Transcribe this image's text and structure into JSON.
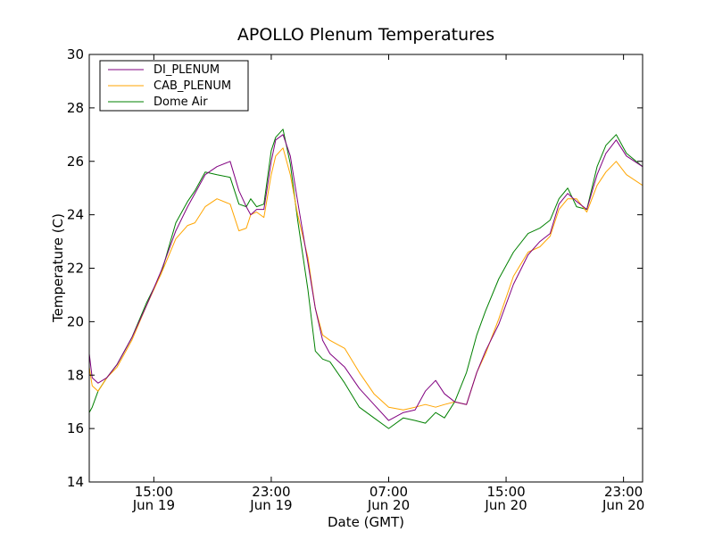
{
  "chart_data": {
    "type": "line",
    "title": "APOLLO Plenum Temperatures",
    "xlabel": "Date (GMT)",
    "ylabel": "Temperature (C)",
    "x_units": "hours since Jun 19 00:00 GMT",
    "xlim": [
      10.6,
      48.3
    ],
    "ylim": [
      14,
      30
    ],
    "yticks": [
      14,
      16,
      18,
      20,
      22,
      24,
      26,
      28,
      30
    ],
    "xticks": [
      {
        "x": 15,
        "line1": "15:00",
        "line2": "Jun 19"
      },
      {
        "x": 23,
        "line1": "23:00",
        "line2": "Jun 19"
      },
      {
        "x": 31,
        "line1": "07:00",
        "line2": "Jun 20"
      },
      {
        "x": 39,
        "line1": "15:00",
        "line2": "Jun 20"
      },
      {
        "x": 47,
        "line1": "23:00",
        "line2": "Jun 20"
      }
    ],
    "legend_position": "top-left",
    "series": [
      {
        "name": "DI_PLENUM",
        "color": "#800080",
        "x": [
          10.6,
          10.8,
          11.2,
          11.8,
          12.5,
          13.5,
          14.5,
          15.5,
          16.5,
          17.3,
          17.8,
          18.5,
          19.3,
          20.2,
          20.8,
          21.3,
          21.6,
          22.0,
          22.5,
          23.0,
          23.3,
          23.8,
          24.3,
          24.8,
          25.5,
          26.0,
          26.5,
          27.0,
          28.0,
          29.0,
          30.0,
          31.0,
          32.0,
          32.8,
          33.5,
          34.2,
          34.8,
          35.5,
          36.3,
          37.0,
          37.6,
          38.5,
          39.5,
          40.5,
          41.3,
          42.0,
          42.6,
          43.2,
          43.8,
          44.5,
          45.2,
          45.8,
          46.5,
          47.2,
          48.3
        ],
        "y": [
          18.8,
          17.9,
          17.7,
          17.9,
          18.4,
          19.4,
          20.6,
          21.9,
          23.4,
          24.3,
          24.8,
          25.5,
          25.8,
          26.0,
          24.9,
          24.3,
          24.0,
          24.2,
          24.2,
          26.0,
          26.8,
          27.0,
          26.2,
          24.5,
          22.2,
          20.5,
          19.3,
          18.8,
          18.3,
          17.5,
          16.9,
          16.3,
          16.6,
          16.7,
          17.4,
          17.8,
          17.3,
          17.0,
          16.9,
          18.1,
          18.9,
          19.9,
          21.4,
          22.5,
          23.0,
          23.3,
          24.4,
          24.8,
          24.5,
          24.2,
          25.5,
          26.3,
          26.8,
          26.2,
          25.8
        ]
      },
      {
        "name": "CAB_PLENUM",
        "color": "#ffa500",
        "x": [
          10.6,
          10.8,
          11.2,
          11.8,
          12.5,
          13.5,
          14.5,
          15.5,
          16.5,
          17.3,
          17.8,
          18.5,
          19.3,
          20.2,
          20.8,
          21.3,
          21.6,
          22.0,
          22.5,
          23.0,
          23.3,
          23.8,
          24.3,
          24.8,
          25.5,
          26.0,
          26.5,
          27.0,
          28.0,
          29.0,
          30.0,
          31.0,
          32.0,
          32.8,
          33.5,
          34.2,
          34.8,
          35.5,
          36.3,
          37.0,
          37.6,
          38.5,
          39.5,
          40.5,
          41.3,
          42.0,
          42.6,
          43.2,
          43.8,
          44.5,
          45.2,
          45.8,
          46.5,
          47.2,
          48.3
        ],
        "y": [
          18.3,
          17.6,
          17.4,
          17.9,
          18.3,
          19.3,
          20.6,
          21.8,
          23.1,
          23.6,
          23.7,
          24.3,
          24.6,
          24.4,
          23.4,
          23.5,
          24.0,
          24.1,
          23.9,
          25.5,
          26.2,
          26.5,
          25.5,
          24.0,
          22.4,
          20.5,
          19.5,
          19.3,
          19.0,
          18.1,
          17.3,
          16.8,
          16.7,
          16.8,
          16.9,
          16.8,
          16.9,
          17.0,
          16.9,
          18.1,
          18.8,
          20.1,
          21.7,
          22.6,
          22.8,
          23.2,
          24.2,
          24.6,
          24.6,
          24.1,
          25.1,
          25.6,
          26.0,
          25.5,
          25.1
        ]
      },
      {
        "name": "Dome Air",
        "color": "#008000",
        "x": [
          10.6,
          10.8,
          11.2,
          11.8,
          12.5,
          13.5,
          14.5,
          15.5,
          16.5,
          17.3,
          17.8,
          18.5,
          19.3,
          20.2,
          20.8,
          21.3,
          21.6,
          22.0,
          22.5,
          23.0,
          23.3,
          23.8,
          24.3,
          24.8,
          25.5,
          26.0,
          26.5,
          27.0,
          28.0,
          29.0,
          30.0,
          31.0,
          32.0,
          32.8,
          33.5,
          34.2,
          34.8,
          35.5,
          36.3,
          37.0,
          37.6,
          38.5,
          39.5,
          40.5,
          41.3,
          42.0,
          42.6,
          43.2,
          43.8,
          44.5,
          45.2,
          45.8,
          46.5,
          47.2,
          48.3
        ],
        "y": [
          16.6,
          16.8,
          17.4,
          17.9,
          18.4,
          19.4,
          20.7,
          21.8,
          23.7,
          24.5,
          24.9,
          25.6,
          25.5,
          25.4,
          24.4,
          24.3,
          24.6,
          24.3,
          24.4,
          26.4,
          26.9,
          27.2,
          25.9,
          23.8,
          21.2,
          18.9,
          18.6,
          18.5,
          17.7,
          16.8,
          16.4,
          16.0,
          16.4,
          16.3,
          16.2,
          16.6,
          16.4,
          17.0,
          18.1,
          19.5,
          20.4,
          21.6,
          22.6,
          23.3,
          23.5,
          23.8,
          24.6,
          25.0,
          24.3,
          24.2,
          25.8,
          26.6,
          27.0,
          26.3,
          25.8
        ]
      }
    ]
  }
}
